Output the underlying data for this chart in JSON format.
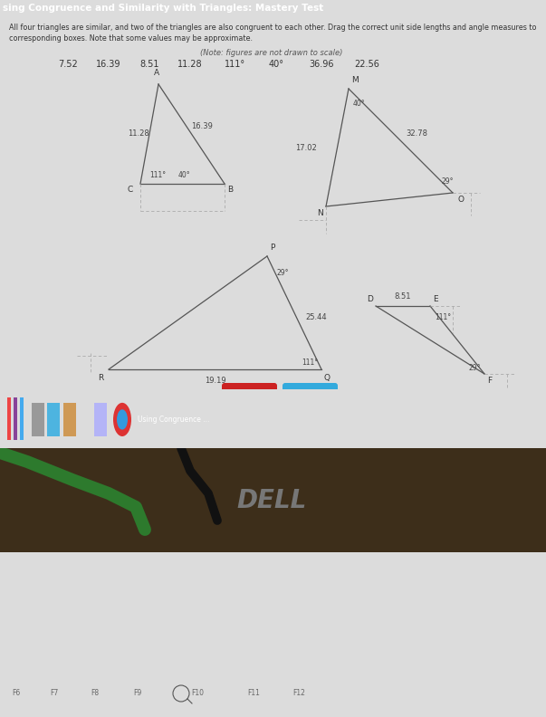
{
  "title": "sing Congruence and Similarity with Triangles: Mastery Test",
  "title_bar_color": "#3ab4e0",
  "instructions_line1": "All four triangles are similar, and two of the triangles are also congruent to each other. Drag the correct unit side lengths and angle measures to",
  "instructions_line2": "corresponding boxes. Note that some values may be approximate.",
  "note": "(Note: figures are not drawn to scale)",
  "values_row": [
    "7.52",
    "16.39",
    "8.51",
    "11.28",
    "111°",
    "40°",
    "36.96",
    "22.56"
  ],
  "content_bg": "#dcdcdc",
  "triangle_color": "#555555",
  "dashed_color": "#aaaaaa",
  "text_color": "#333333",
  "angle_color": "#444444",
  "bottom_dark": "#2a2218",
  "bottom_darker": "#1a1208",
  "taskbar_bg": "#1e1e2e",
  "red_btn": "#cc2222",
  "blue_btn": "#33aadd",
  "keyboard_bg": "#111111",
  "key_color": "#666666",
  "dell_color": "#777777",
  "green_cable": "#2d7a2d"
}
